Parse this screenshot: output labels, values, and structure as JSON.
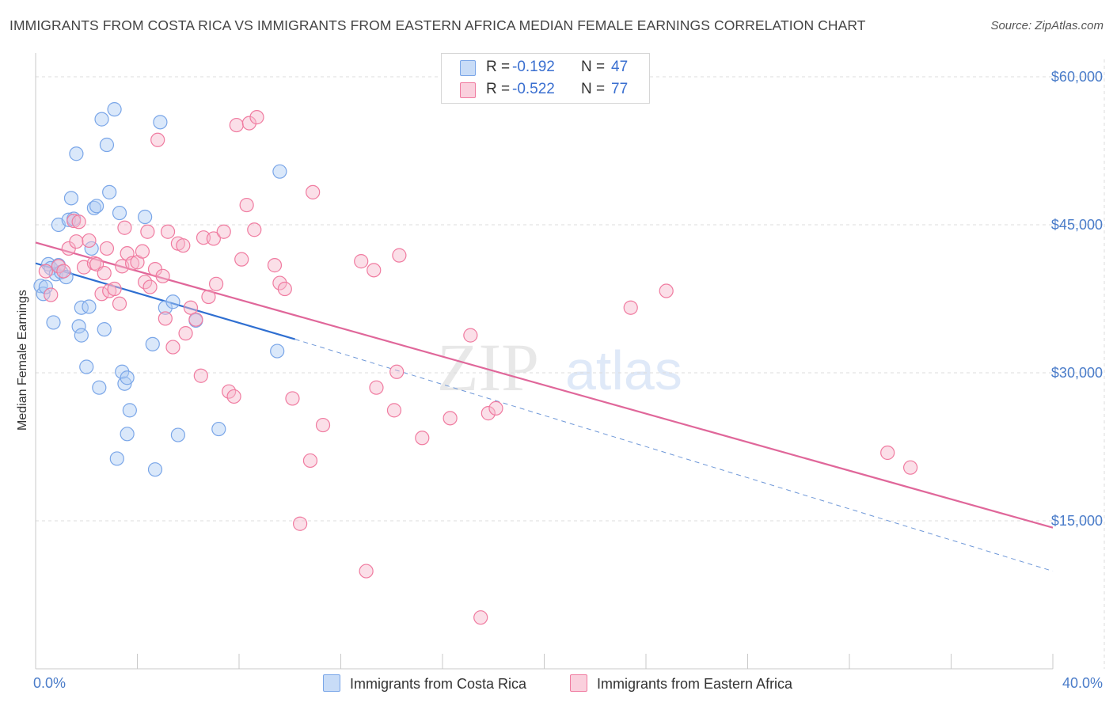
{
  "header": {
    "title": "IMMIGRANTS FROM COSTA RICA VS IMMIGRANTS FROM EASTERN AFRICA MEDIAN FEMALE EARNINGS CORRELATION CHART",
    "source": "Source: ZipAtlas.com"
  },
  "watermark": {
    "zip": "ZIP",
    "atlas": "atlas"
  },
  "legend": {
    "rows": [
      {
        "r_label": "R =",
        "r_value": "-0.192",
        "n_label": "N =",
        "n_value": "47",
        "color": "#aecbf5"
      },
      {
        "r_label": "R =",
        "r_value": "-0.522",
        "n_label": "N =",
        "n_value": "77",
        "color": "#f7b8cb"
      }
    ]
  },
  "chart_data": {
    "type": "scatter",
    "title": "IMMIGRANTS FROM COSTA RICA VS IMMIGRANTS FROM EASTERN AFRICA MEDIAN FEMALE EARNINGS CORRELATION CHART",
    "xlabel": "",
    "ylabel": "Median Female Earnings",
    "xlim": [
      0,
      40
    ],
    "ylim": [
      0,
      63000
    ],
    "x_tick_labels": [
      "0.0%",
      "40.0%"
    ],
    "y_ticks": [
      15000,
      30000,
      45000,
      60000
    ],
    "y_tick_labels": [
      "$15,000",
      "$30,000",
      "$45,000",
      "$60,000"
    ],
    "grid": true,
    "legend_position": "top-center",
    "series": [
      {
        "name": "Immigrants from Costa Rica",
        "color": "#7aa6e8",
        "trend": {
          "x": [
            0,
            10.2
          ],
          "y": [
            41100,
            33400
          ],
          "dashed_to": [
            40,
            9900
          ]
        },
        "points": [
          [
            0.2,
            38800
          ],
          [
            0.3,
            38000
          ],
          [
            0.4,
            38700
          ],
          [
            0.5,
            41000
          ],
          [
            0.6,
            40600
          ],
          [
            0.7,
            35100
          ],
          [
            0.8,
            40000
          ],
          [
            0.9,
            40900
          ],
          [
            0.9,
            45000
          ],
          [
            1.0,
            40200
          ],
          [
            1.2,
            39700
          ],
          [
            1.3,
            45500
          ],
          [
            1.4,
            47700
          ],
          [
            1.5,
            45600
          ],
          [
            1.6,
            52200
          ],
          [
            1.7,
            34700
          ],
          [
            1.8,
            36600
          ],
          [
            1.8,
            33800
          ],
          [
            2.0,
            30600
          ],
          [
            2.1,
            36700
          ],
          [
            2.2,
            42600
          ],
          [
            2.3,
            46700
          ],
          [
            2.4,
            46900
          ],
          [
            2.5,
            28500
          ],
          [
            2.6,
            55700
          ],
          [
            2.7,
            34400
          ],
          [
            2.8,
            53100
          ],
          [
            2.9,
            48300
          ],
          [
            3.1,
            56700
          ],
          [
            3.2,
            21300
          ],
          [
            3.3,
            46200
          ],
          [
            3.4,
            30100
          ],
          [
            3.5,
            28900
          ],
          [
            3.6,
            29500
          ],
          [
            3.6,
            23800
          ],
          [
            3.7,
            26200
          ],
          [
            4.3,
            45800
          ],
          [
            4.6,
            32900
          ],
          [
            4.7,
            20200
          ],
          [
            4.9,
            55400
          ],
          [
            5.1,
            36600
          ],
          [
            5.4,
            37200
          ],
          [
            5.6,
            23700
          ],
          [
            6.3,
            35300
          ],
          [
            7.2,
            24300
          ],
          [
            9.5,
            32200
          ],
          [
            9.6,
            50400
          ]
        ]
      },
      {
        "name": "Immigrants from Eastern Africa",
        "color": "#f07ba0",
        "trend": {
          "x": [
            0,
            40
          ],
          "y": [
            43200,
            14300
          ]
        },
        "points": [
          [
            0.4,
            40300
          ],
          [
            0.6,
            37900
          ],
          [
            0.9,
            40800
          ],
          [
            1.1,
            40300
          ],
          [
            1.3,
            42600
          ],
          [
            1.5,
            45400
          ],
          [
            1.6,
            43300
          ],
          [
            1.7,
            45300
          ],
          [
            1.9,
            40700
          ],
          [
            2.1,
            43400
          ],
          [
            2.3,
            41100
          ],
          [
            2.4,
            41000
          ],
          [
            2.6,
            38000
          ],
          [
            2.7,
            40100
          ],
          [
            2.8,
            42600
          ],
          [
            2.9,
            38300
          ],
          [
            3.1,
            38500
          ],
          [
            3.3,
            37000
          ],
          [
            3.4,
            40800
          ],
          [
            3.5,
            44700
          ],
          [
            3.6,
            42100
          ],
          [
            3.8,
            41100
          ],
          [
            4.0,
            41200
          ],
          [
            4.2,
            42300
          ],
          [
            4.3,
            39200
          ],
          [
            4.4,
            44300
          ],
          [
            4.5,
            38700
          ],
          [
            4.7,
            40500
          ],
          [
            4.8,
            53600
          ],
          [
            5.0,
            39800
          ],
          [
            5.1,
            35500
          ],
          [
            5.2,
            44300
          ],
          [
            5.4,
            32600
          ],
          [
            5.6,
            43100
          ],
          [
            5.8,
            42900
          ],
          [
            5.9,
            34000
          ],
          [
            6.1,
            36600
          ],
          [
            6.3,
            35400
          ],
          [
            6.5,
            29700
          ],
          [
            6.6,
            43700
          ],
          [
            6.8,
            37700
          ],
          [
            7.0,
            43600
          ],
          [
            7.1,
            39000
          ],
          [
            7.4,
            44300
          ],
          [
            7.6,
            28100
          ],
          [
            7.8,
            27600
          ],
          [
            7.9,
            55100
          ],
          [
            8.1,
            41500
          ],
          [
            8.3,
            47000
          ],
          [
            8.4,
            55300
          ],
          [
            8.6,
            44500
          ],
          [
            8.7,
            55900
          ],
          [
            9.4,
            40900
          ],
          [
            9.6,
            39100
          ],
          [
            9.8,
            38500
          ],
          [
            10.1,
            27400
          ],
          [
            10.4,
            14700
          ],
          [
            10.8,
            21100
          ],
          [
            10.9,
            48300
          ],
          [
            11.3,
            24700
          ],
          [
            12.8,
            41300
          ],
          [
            13.0,
            9900
          ],
          [
            13.3,
            40400
          ],
          [
            13.4,
            28500
          ],
          [
            14.1,
            26200
          ],
          [
            14.2,
            30100
          ],
          [
            14.3,
            41900
          ],
          [
            15.2,
            23400
          ],
          [
            16.3,
            25400
          ],
          [
            17.1,
            33800
          ],
          [
            17.5,
            5200
          ],
          [
            17.8,
            25900
          ],
          [
            18.1,
            26400
          ],
          [
            23.4,
            36600
          ],
          [
            24.8,
            38300
          ],
          [
            33.5,
            21900
          ],
          [
            34.4,
            20400
          ]
        ]
      }
    ]
  }
}
